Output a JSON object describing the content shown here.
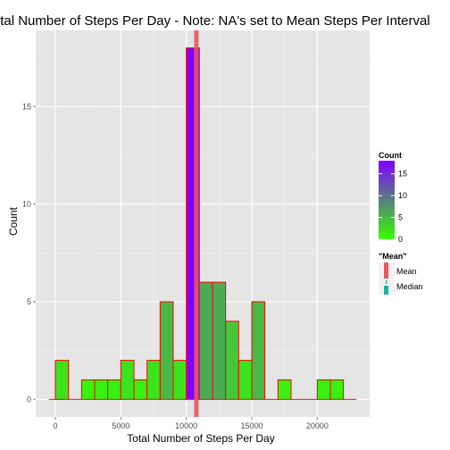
{
  "chart_data": {
    "type": "bar",
    "title": "Total Number of Steps Per Day - Note: NA's set to Mean Steps Per Interval",
    "xlabel": "Total Number of Steps Per Day",
    "ylabel": "Count",
    "xlim": [
      -1500,
      24000
    ],
    "ylim": [
      -0.9,
      18.9
    ],
    "xticks": [
      0,
      5000,
      10000,
      15000,
      20000
    ],
    "yticks": [
      0,
      5,
      10,
      15
    ],
    "bin_width": 1000,
    "bins": [
      {
        "x": 0,
        "count": 0
      },
      {
        "x": 500,
        "count": 2
      },
      {
        "x": 1500,
        "count": 0
      },
      {
        "x": 2500,
        "count": 1
      },
      {
        "x": 3500,
        "count": 1
      },
      {
        "x": 4500,
        "count": 1
      },
      {
        "x": 5500,
        "count": 2
      },
      {
        "x": 6500,
        "count": 1
      },
      {
        "x": 7500,
        "count": 2
      },
      {
        "x": 8500,
        "count": 5
      },
      {
        "x": 9500,
        "count": 2
      },
      {
        "x": 10500,
        "count": 18
      },
      {
        "x": 11500,
        "count": 6
      },
      {
        "x": 12500,
        "count": 6
      },
      {
        "x": 13500,
        "count": 4
      },
      {
        "x": 14500,
        "count": 2
      },
      {
        "x": 15500,
        "count": 5
      },
      {
        "x": 16500,
        "count": 0
      },
      {
        "x": 17500,
        "count": 1
      },
      {
        "x": 18500,
        "count": 0
      },
      {
        "x": 19500,
        "count": 0
      },
      {
        "x": 20500,
        "count": 1
      },
      {
        "x": 21500,
        "count": 1
      },
      {
        "x": 22500,
        "count": 0
      }
    ],
    "mean": 10766,
    "median": 10766,
    "grid": true,
    "legend_placement": "right",
    "colors": {
      "panel": "#e5e5e5",
      "grid": "#ffffff",
      "low": "#33ff00",
      "high": "#8000ff",
      "border": "#ff0000",
      "mean": "#e8575f",
      "median": "#20b2aa"
    },
    "legend_count": {
      "title": "Count",
      "ticks": [
        0,
        5,
        10,
        15
      ],
      "max": 18
    },
    "legend_lines": {
      "title": "\"Mean\"",
      "items": [
        "Mean",
        "Median"
      ]
    }
  }
}
